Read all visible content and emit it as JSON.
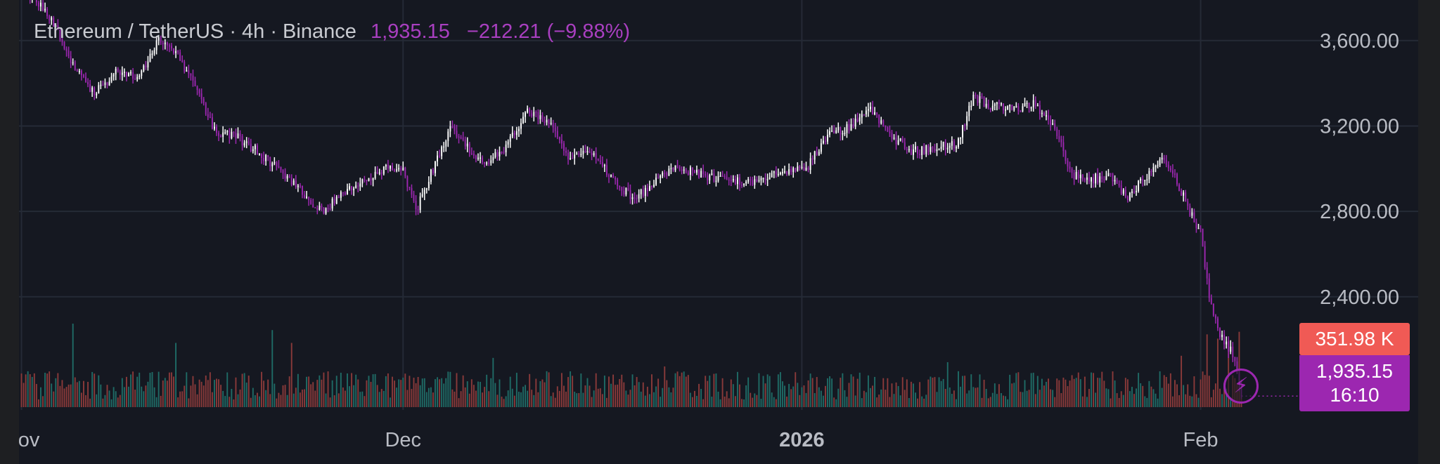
{
  "legend": {
    "symbol_text": "Ethereum / TetherUS · 4h · Binance",
    "last_price": "1,935.15",
    "change_text": "−212.21 (−9.88%)"
  },
  "colors": {
    "background": "#151821",
    "up_candle": "#ffffff",
    "down_candle": "#9c27b0",
    "volume_up": "#1f6b66",
    "volume_down": "#8a3a3a",
    "grid": "#252a36",
    "axis_text": "#b9bcc4",
    "volume_label_bg": "#f05a55",
    "price_label_bg": "#9c27b0"
  },
  "labels": {
    "volume_value": "351.98 K",
    "price_value": "1,935.15",
    "countdown": "16:10"
  },
  "icons": {
    "alert_button": "lightning-icon"
  },
  "chart_data": {
    "type": "candlestick",
    "interval": "4h",
    "ylim": [
      1870,
      3790
    ],
    "y_ticks": [
      {
        "value": 3600,
        "label": "3,600.00"
      },
      {
        "value": 3200,
        "label": "3,200.00"
      },
      {
        "value": 2800,
        "label": "2,800.00"
      },
      {
        "value": 2400,
        "label": "2,400.00"
      }
    ],
    "x_ticks": [
      {
        "bar": 0,
        "label": "Nov",
        "bold": false
      },
      {
        "bar": 178,
        "label": "Dec",
        "bold": false
      },
      {
        "bar": 364,
        "label": "2026",
        "bold": true
      },
      {
        "bar": 550,
        "label": "Feb",
        "bold": false
      }
    ],
    "bar_count": 570,
    "close_path": [
      [
        0,
        3860
      ],
      [
        14,
        3700
      ],
      [
        26,
        3450
      ],
      [
        34,
        3350
      ],
      [
        44,
        3450
      ],
      [
        54,
        3420
      ],
      [
        64,
        3600
      ],
      [
        72,
        3550
      ],
      [
        80,
        3400
      ],
      [
        90,
        3180
      ],
      [
        100,
        3150
      ],
      [
        110,
        3080
      ],
      [
        120,
        3000
      ],
      [
        130,
        2900
      ],
      [
        140,
        2800
      ],
      [
        150,
        2880
      ],
      [
        160,
        2950
      ],
      [
        170,
        3010
      ],
      [
        178,
        2990
      ],
      [
        184,
        2800
      ],
      [
        192,
        3000
      ],
      [
        200,
        3200
      ],
      [
        208,
        3100
      ],
      [
        216,
        3030
      ],
      [
        226,
        3100
      ],
      [
        236,
        3280
      ],
      [
        246,
        3220
      ],
      [
        256,
        3050
      ],
      [
        266,
        3070
      ],
      [
        276,
        2950
      ],
      [
        286,
        2850
      ],
      [
        296,
        2950
      ],
      [
        306,
        3000
      ],
      [
        316,
        2980
      ],
      [
        326,
        2950
      ],
      [
        336,
        2940
      ],
      [
        346,
        2950
      ],
      [
        356,
        2990
      ],
      [
        366,
        3000
      ],
      [
        376,
        3150
      ],
      [
        386,
        3200
      ],
      [
        396,
        3280
      ],
      [
        406,
        3150
      ],
      [
        416,
        3080
      ],
      [
        426,
        3100
      ],
      [
        436,
        3110
      ],
      [
        444,
        3330
      ],
      [
        454,
        3290
      ],
      [
        464,
        3280
      ],
      [
        472,
        3310
      ],
      [
        482,
        3180
      ],
      [
        490,
        2970
      ],
      [
        498,
        2950
      ],
      [
        508,
        2960
      ],
      [
        516,
        2870
      ],
      [
        524,
        2960
      ],
      [
        532,
        3040
      ],
      [
        538,
        2960
      ],
      [
        544,
        2820
      ],
      [
        550,
        2700
      ],
      [
        554,
        2400
      ],
      [
        560,
        2200
      ],
      [
        566,
        2120
      ],
      [
        569,
        1935
      ]
    ],
    "volume": {
      "base": 120000,
      "spikes": [
        [
          24,
          390000
        ],
        [
          72,
          300000
        ],
        [
          117,
          360000
        ],
        [
          126,
          300000
        ],
        [
          220,
          230000
        ],
        [
          300,
          190000
        ],
        [
          432,
          210000
        ],
        [
          541,
          240000
        ],
        [
          553,
          340000
        ],
        [
          558,
          320000
        ],
        [
          563,
          310000
        ],
        [
          568,
          351980
        ]
      ]
    }
  }
}
